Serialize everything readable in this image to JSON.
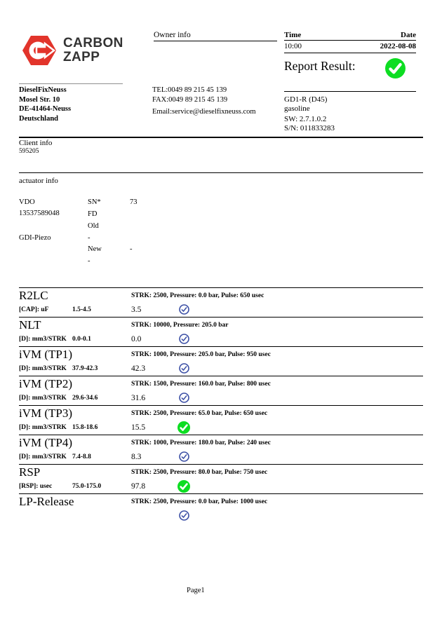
{
  "header": {
    "logo": {
      "line1": "CARBON",
      "line2": "ZAPP"
    },
    "owner_info_label": "Owner info",
    "time_label": "Time",
    "date_label": "Date",
    "time_value": "10:00",
    "date_value": "2022-08-08",
    "report_result_label": "Report Result:"
  },
  "owner": {
    "name": "DieselFixNeuss",
    "street": "Mosel Str. 10",
    "city": "DE-41464-Neuss",
    "country": "Deutschland",
    "tel": "TEL:0049 89 215 45 139",
    "fax": "FAX:0049 89 215 45 139",
    "email": "Email:service@dieselfixneuss.com"
  },
  "device": {
    "model": "GD1-R (D45)",
    "fuel": "gasoline",
    "sw": "SW: 2.7.1.0.2",
    "sn": "S/N: 011833283"
  },
  "client": {
    "label": "Client info",
    "value": "595205"
  },
  "actuator": {
    "label": "actuator info",
    "brand": "VDO",
    "part_number": "13537589048",
    "type": "GDI-Piezo",
    "sn_label": "SN*",
    "sn_value": "73",
    "fd_label": "FD",
    "old_label": "Old",
    "old_value": "-",
    "new_label": "New",
    "new_value": "-",
    "extra_value": "-"
  },
  "tests": [
    {
      "name": "R2LC",
      "condition": "STRK: 2500, Pressure: 0.0 bar, Pulse: 650 usec",
      "param": "[CAP]: uF",
      "range": "1.5-4.5",
      "value": "3.5",
      "status": "pass-blue"
    },
    {
      "name": "NLT",
      "condition": "STRK: 10000, Pressure: 205.0 bar",
      "param": "[D]: mm3/STRK",
      "range": "0.0-0.1",
      "value": "0.0",
      "status": "pass-blue"
    },
    {
      "name": "iVM (TP1)",
      "condition": "STRK: 1000, Pressure: 205.0 bar, Pulse: 950 usec",
      "param": "[D]: mm3/STRK",
      "range": "37.9-42.3",
      "value": "42.3",
      "status": "pass-blue"
    },
    {
      "name": "iVM (TP2)",
      "condition": "STRK: 1500, Pressure: 160.0 bar, Pulse: 800 usec",
      "param": "[D]: mm3/STRK",
      "range": "29.6-34.6",
      "value": "31.6",
      "status": "pass-blue"
    },
    {
      "name": "iVM (TP3)",
      "condition": "STRK: 2500, Pressure: 65.0 bar, Pulse: 650 usec",
      "param": "[D]: mm3/STRK",
      "range": "15.8-18.6",
      "value": "15.5",
      "status": "pass-green"
    },
    {
      "name": "iVM (TP4)",
      "condition": "STRK: 1000, Pressure: 180.0 bar, Pulse: 240 usec",
      "param": "[D]: mm3/STRK",
      "range": "7.4-8.8",
      "value": "8.3",
      "status": "pass-blue"
    },
    {
      "name": "RSP",
      "condition": "STRK: 2500, Pressure: 80.0 bar, Pulse: 750 usec",
      "param": "[RSP]: usec",
      "range": "75.0-175.0",
      "value": "97.8",
      "status": "pass-green"
    },
    {
      "name": "LP-Release",
      "condition": "STRK: 2500, Pressure: 0.0 bar, Pulse: 1000 usec",
      "param": "",
      "range": "",
      "value": "",
      "status": "pass-blue"
    }
  ],
  "footer": {
    "page": "Page1"
  },
  "colors": {
    "brand_red": "#e2342b",
    "check_green": "#0ddd22",
    "check_blue": "#3b4fa5"
  }
}
